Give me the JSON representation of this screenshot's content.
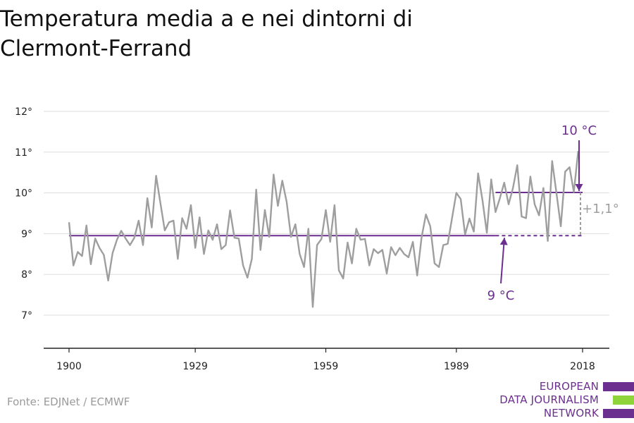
{
  "title": "Temperatura media a e nei dintorni di Clermont-Ferrand",
  "source": "Fonte: EDJNet / ECMWF",
  "logo": {
    "lines": [
      "EUROPEAN",
      "DATA JOURNALISM",
      "NETWORK"
    ],
    "colors": [
      "#6b2f8f",
      "#8fd43a",
      "#6b2f8f"
    ]
  },
  "colors": {
    "series": "#9e9e9e",
    "reference": "#6b2f8f",
    "grid": "#dddddd",
    "axis": "#222222",
    "annotation_muted": "#9e9e9e"
  },
  "chart_data": {
    "type": "line",
    "title": "Temperatura media a e nei dintorni di Clermont-Ferrand",
    "xlabel": "",
    "ylabel": "",
    "xlim": [
      1900,
      2018
    ],
    "ylim": [
      6.5,
      12.5
    ],
    "x_ticks": [
      1900,
      1929,
      1959,
      1989,
      2018
    ],
    "y_ticks": [
      7,
      8,
      9,
      10,
      11,
      12
    ],
    "y_tick_labels": [
      "7°",
      "8°",
      "9°",
      "10°",
      "11°",
      "12°"
    ],
    "grid": true,
    "series": [
      {
        "values": [
          9.28,
          8.22,
          8.55,
          8.45,
          9.2,
          8.25,
          8.88,
          8.65,
          8.48,
          7.85,
          8.52,
          8.85,
          9.07,
          8.88,
          8.72,
          8.9,
          9.32,
          8.72,
          9.87,
          9.15,
          10.42,
          9.75,
          9.08,
          9.28,
          9.32,
          8.38,
          9.38,
          9.12,
          9.7,
          8.65,
          9.4,
          8.5,
          9.08,
          8.85,
          9.23,
          8.62,
          8.72,
          9.57,
          8.9,
          8.88,
          8.22,
          7.92,
          8.38,
          10.08,
          8.6,
          9.58,
          8.92,
          10.45,
          9.68,
          10.3,
          9.78,
          8.92,
          9.23,
          8.5,
          8.18,
          9.12,
          7.2,
          8.72,
          8.87,
          9.58,
          8.8,
          9.7,
          8.1,
          7.9,
          8.78,
          8.27,
          9.12,
          8.85,
          8.87,
          8.22,
          8.62,
          8.52,
          8.6,
          8.02,
          8.67,
          8.47,
          8.65,
          8.5,
          8.42,
          8.8,
          7.97,
          8.9,
          9.47,
          9.18,
          8.27,
          8.18,
          8.72,
          8.75,
          9.38,
          10.0,
          9.85,
          8.98,
          9.37,
          9.05,
          10.48,
          9.82,
          9.02,
          10.33,
          9.53,
          9.87,
          10.25,
          9.72,
          10.12,
          10.68,
          9.42,
          9.38,
          10.4,
          9.72,
          9.45,
          10.12,
          8.82,
          10.78,
          10.0,
          9.18,
          10.52,
          10.63,
          10.02,
          11.03
        ]
      }
    ],
    "reference_lines": [
      {
        "label": "9 °C",
        "value": 8.95,
        "from": 1900,
        "to": 1998,
        "dashed_to": 2018
      },
      {
        "label": "10 °C",
        "value": 10.01,
        "from": 1998,
        "to": 2018
      }
    ],
    "annotations": [
      {
        "text": "+1,1°"
      }
    ]
  }
}
